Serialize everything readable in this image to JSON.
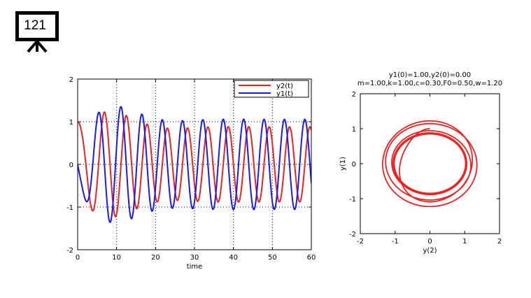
{
  "slide": {
    "number": "121",
    "icon": "presentation-board-icon"
  },
  "chart_data": [
    {
      "type": "line",
      "title": "",
      "xlabel": "time",
      "ylabel": "",
      "xlim": [
        0,
        60
      ],
      "ylim": [
        -2,
        2
      ],
      "xticks": [
        0,
        10,
        20,
        30,
        40,
        50,
        60
      ],
      "yticks": [
        -2,
        -1,
        0,
        1,
        2
      ],
      "grid": "dotted",
      "legend": "top-right",
      "params": {
        "y1_0": 1.0,
        "y2_0": 0.0,
        "m": 1.0,
        "k": 1.0,
        "c": 0.3,
        "F0": 0.5,
        "w": 1.2
      },
      "series": [
        {
          "name": "y2(t)",
          "color": "#ee2222",
          "var": "y1"
        },
        {
          "name": "y1(t)",
          "color": "#1a1aee",
          "var": "y2"
        }
      ]
    },
    {
      "type": "line",
      "title_lines": [
        "y1(0)=1.00,y2(0)=0.00",
        "m=1.00,k=1.00,c=0.30,F0=0.50,w=1.20"
      ],
      "xlabel": "y(2)",
      "ylabel": "y(1)",
      "xlim": [
        -2,
        2
      ],
      "ylim": [
        -2,
        2
      ],
      "xticks": [
        -2,
        -1,
        0,
        1,
        2
      ],
      "yticks": [
        -2,
        -1,
        0,
        1,
        2
      ],
      "grid": "off",
      "params": {
        "y1_0": 1.0,
        "y2_0": 0.0,
        "m": 1.0,
        "k": 1.0,
        "c": 0.3,
        "F0": 0.5,
        "w": 1.2
      },
      "series": [
        {
          "color": "#ee2222",
          "x": "y2",
          "y": "y1"
        }
      ]
    }
  ]
}
